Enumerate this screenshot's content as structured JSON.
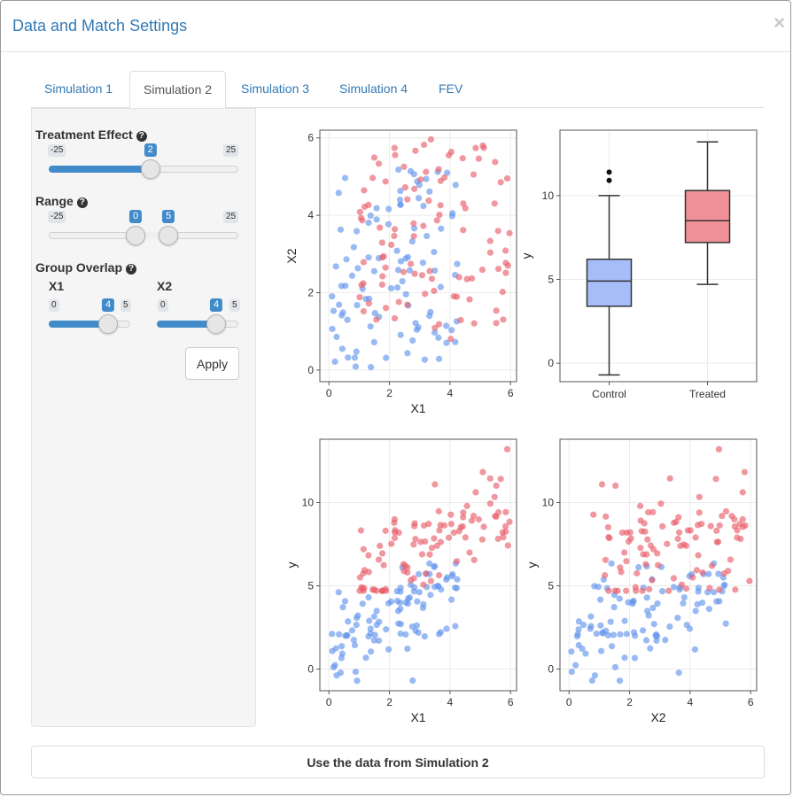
{
  "modal": {
    "title": "Data and Match Settings",
    "close_label": "×"
  },
  "tabs": [
    {
      "label": "Simulation 1",
      "active": false
    },
    {
      "label": "Simulation 2",
      "active": true
    },
    {
      "label": "Simulation 3",
      "active": false
    },
    {
      "label": "Simulation 4",
      "active": false
    },
    {
      "label": "FEV",
      "active": false
    }
  ],
  "sidebar": {
    "treatment_effect": {
      "label": "Treatment Effect",
      "min": -25,
      "max": 25,
      "value": 2,
      "min_label": "-25",
      "max_label": "25",
      "value_label": "2"
    },
    "range": {
      "label": "Range",
      "min": -25,
      "max": 25,
      "from": 0,
      "to": 5,
      "min_label": "-25",
      "max_label": "25",
      "from_label": "0",
      "to_label": "5"
    },
    "group_overlap": {
      "label": "Group Overlap",
      "x1": {
        "label": "X1",
        "min": 0,
        "max": 5,
        "value": 4,
        "min_label": "0",
        "max_label": "5",
        "value_label": "4"
      },
      "x2": {
        "label": "X2",
        "min": 0,
        "max": 5,
        "value": 4,
        "min_label": "0",
        "max_label": "5",
        "value_label": "4"
      }
    },
    "apply_label": "Apply"
  },
  "bottom_button_label": "Use the data from Simulation 2",
  "colors": {
    "control": "#6495ed",
    "treated": "#e8606c",
    "box_control_fill": "#a6bdf8",
    "box_treated_fill": "#ef9097",
    "accent": "#337ab7",
    "slider": "#428bca"
  },
  "chart_data": [
    {
      "type": "scatter",
      "xlabel": "X1",
      "ylabel": "X2",
      "xlim": [
        -0.3,
        6.2
      ],
      "ylim": [
        -0.3,
        6.2
      ],
      "xticks": [
        0,
        2,
        4,
        6
      ],
      "yticks": [
        0,
        2,
        4,
        6
      ],
      "groups": [
        "Control",
        "Treated"
      ],
      "point_count_per_group": 100
    },
    {
      "type": "box",
      "xlabel": "",
      "ylabel": "y",
      "categories": [
        "Control",
        "Treated"
      ],
      "ylim": [
        -1.1,
        13.9
      ],
      "yticks": [
        0,
        5,
        10
      ],
      "boxes": [
        {
          "name": "Control",
          "min": -0.7,
          "q1": 3.4,
          "median": 4.9,
          "q3": 6.2,
          "max": 10.0,
          "outliers": [
            10.9,
            11.4
          ]
        },
        {
          "name": "Treated",
          "min": 4.7,
          "q1": 7.2,
          "median": 8.5,
          "q3": 10.3,
          "max": 13.2,
          "outliers": []
        }
      ]
    },
    {
      "type": "scatter",
      "xlabel": "X1",
      "ylabel": "y",
      "xlim": [
        -0.3,
        6.2
      ],
      "ylim": [
        -1.3,
        13.8
      ],
      "xticks": [
        0,
        2,
        4,
        6
      ],
      "yticks": [
        0,
        5,
        10
      ]
    },
    {
      "type": "scatter",
      "xlabel": "X2",
      "ylabel": "y",
      "xlim": [
        -0.3,
        6.2
      ],
      "ylim": [
        -1.3,
        13.8
      ],
      "xticks": [
        0,
        2,
        4,
        6
      ],
      "yticks": [
        0,
        5,
        10
      ]
    }
  ]
}
